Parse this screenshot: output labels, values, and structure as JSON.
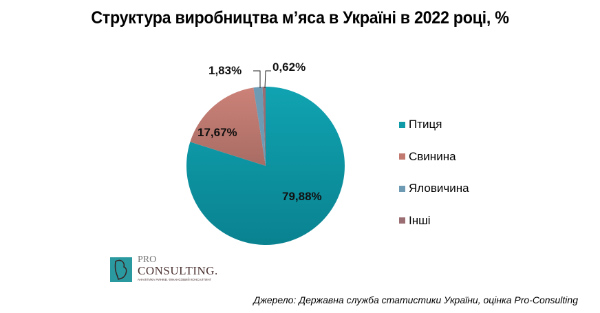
{
  "chart_data": {
    "type": "pie",
    "title": "Структура виробництва м’яса в Україні в 2022 році, %",
    "categories": [
      "Птиця",
      "Свинина",
      "Яловичина",
      "Інші"
    ],
    "values": [
      79.88,
      17.67,
      1.83,
      0.62
    ],
    "labels": [
      "79,88%",
      "17,67%",
      "1,83%",
      "0,62%"
    ],
    "colors": [
      "#0f9aa8",
      "#c27a70",
      "#6e9ab4",
      "#9a6e72"
    ],
    "legend_position": "right",
    "start_angle": "12 o'clock",
    "direction": "clockwise"
  },
  "title": "Структура виробництва м’яса в Україні в 2022 році, %",
  "legend": [
    {
      "label": "Птиця",
      "color": "#0f9aa8"
    },
    {
      "label": "Свинина",
      "color": "#c27a70"
    },
    {
      "label": "Яловичина",
      "color": "#6e9ab4"
    },
    {
      "label": "Інші",
      "color": "#9a6e72"
    }
  ],
  "data_labels": {
    "poultry": "79,88%",
    "pork": "17,67%",
    "beef": "1,83%",
    "other": "0,62%"
  },
  "logo": {
    "line1": "PRO",
    "line2": "CONSULTING.",
    "tagline": "АНАЛІТИКА РИНКІВ. ФІНАНСОВИЙ КОНСАЛТИНГ"
  },
  "source": "Джерело: Державна служба статистики України, оцінка Pro-Consulting"
}
